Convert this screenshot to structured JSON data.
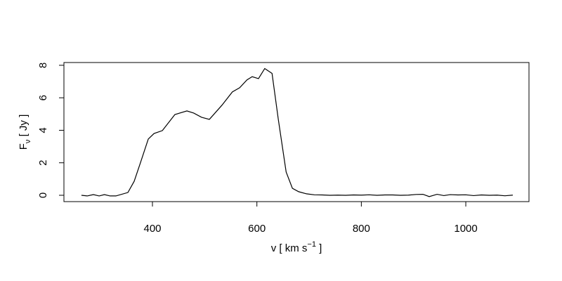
{
  "chart_data": {
    "type": "line",
    "x_label": {
      "main": "v [ km s",
      "sup": "−1",
      "end": " ]"
    },
    "y_label": {
      "main": "F",
      "sub": "ν",
      "end": " [ Jy ]"
    },
    "color": "#000000",
    "x": [
      264,
      275,
      287,
      298,
      308,
      319,
      330,
      353,
      365,
      377,
      392,
      403,
      419,
      443,
      466,
      479,
      494,
      509,
      533,
      553,
      567,
      581,
      591,
      603,
      615,
      629,
      641,
      656,
      668,
      680,
      695,
      710,
      725,
      740,
      755,
      770,
      785,
      800,
      815,
      830,
      845,
      860,
      875,
      890,
      905,
      918,
      930,
      945,
      958,
      970,
      985,
      1000,
      1015,
      1030,
      1045,
      1060,
      1075,
      1090
    ],
    "values": [
      0,
      -0.04,
      0.04,
      -0.04,
      0.04,
      -0.04,
      -0.04,
      0.17,
      0.86,
      2.0,
      3.46,
      3.8,
      3.98,
      4.97,
      5.19,
      5.06,
      4.8,
      4.67,
      5.54,
      6.36,
      6.62,
      7.1,
      7.3,
      7.18,
      7.8,
      7.5,
      4.67,
      1.43,
      0.43,
      0.22,
      0.09,
      0.03,
      0.02,
      0.0,
      0.01,
      0.0,
      0.02,
      0.01,
      0.03,
      0.0,
      0.02,
      0.02,
      0.0,
      0.01,
      0.05,
      0.06,
      -0.08,
      0.06,
      -0.02,
      0.04,
      0.02,
      0.03,
      -0.02,
      0.02,
      0.0,
      0.01,
      -0.03,
      0.01
    ],
    "xlim": [
      230.5,
      1121
    ],
    "ylim": [
      -0.39,
      8.17
    ],
    "xticks": [
      400,
      600,
      800,
      1000
    ],
    "yticks": [
      0,
      2,
      4,
      6,
      8
    ]
  }
}
